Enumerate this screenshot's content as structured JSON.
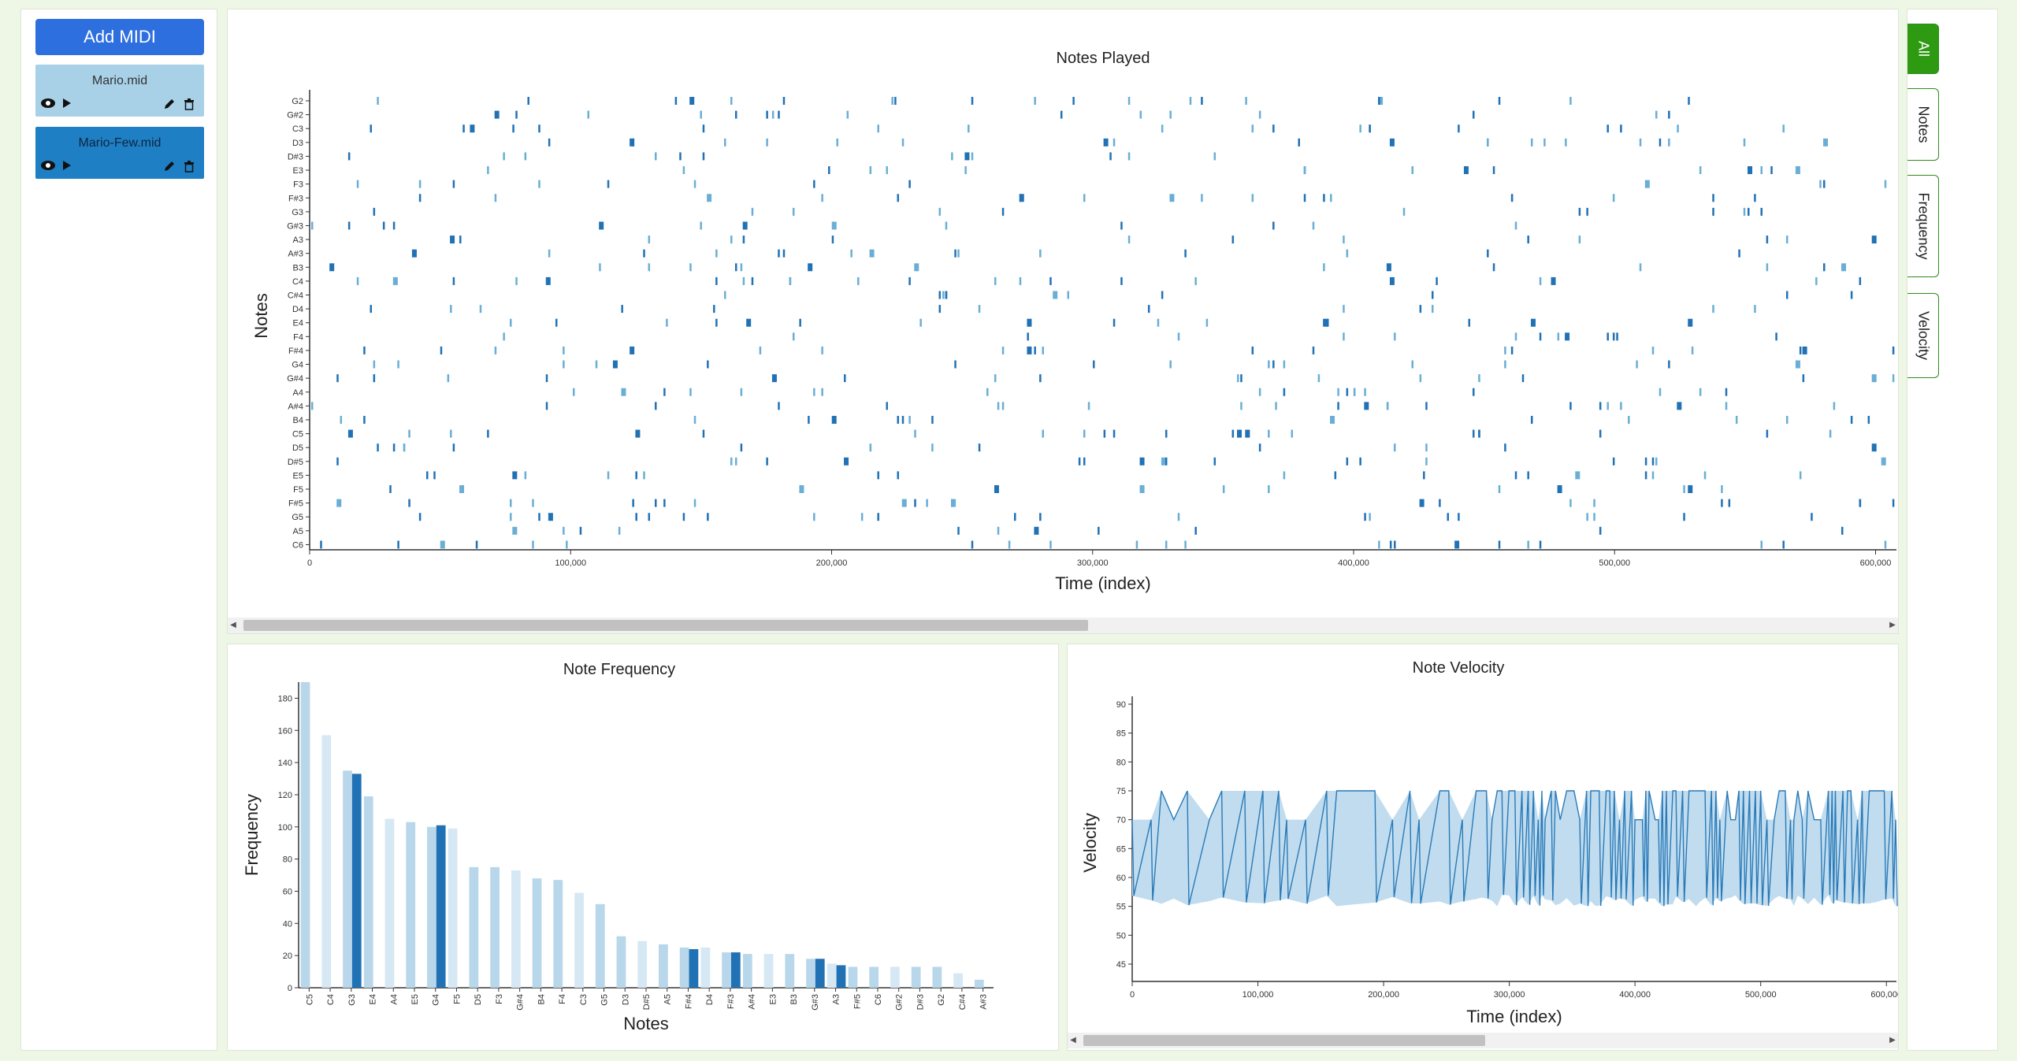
{
  "sidebar": {
    "add_label": "Add MIDI",
    "files": [
      {
        "name": "Mario.mid",
        "bg": "#a8d1e8",
        "active": false
      },
      {
        "name": "Mario-Few.mid",
        "bg": "#1f7fc4",
        "active": true
      }
    ]
  },
  "tabs": [
    {
      "label": "All",
      "active": true
    },
    {
      "label": "Notes",
      "active": false
    },
    {
      "label": "Frequency",
      "active": false
    },
    {
      "label": "Velocity",
      "active": false
    }
  ],
  "colors": {
    "accent": "#2e6fe0",
    "bar_dark": "#2171b5",
    "bar_light": "#b9d7ea",
    "tab_active": "#2e9a12"
  },
  "chart_data": [
    {
      "type": "scatter",
      "title": "Notes Played",
      "xlabel": "Time (index)",
      "ylabel": "Notes",
      "xlim": [
        0,
        608000
      ],
      "xticks": [
        "0",
        "100,000",
        "200,000",
        "300,000",
        "400,000",
        "500,000",
        "600,000"
      ],
      "categories": [
        "G2",
        "G#2",
        "C3",
        "D3",
        "D#3",
        "E3",
        "F3",
        "F#3",
        "G3",
        "G#3",
        "A3",
        "A#3",
        "B3",
        "C4",
        "C#4",
        "D4",
        "E4",
        "F4",
        "F#4",
        "G4",
        "G#4",
        "A4",
        "A#4",
        "B4",
        "C5",
        "D5",
        "D#5",
        "E5",
        "F5",
        "F#5",
        "G5",
        "A5",
        "C6"
      ],
      "notes": "note events spread over time index 0 to 608,000 across the pitch categories"
    },
    {
      "type": "bar",
      "title": "Note Frequency",
      "xlabel": "Notes",
      "ylabel": "Frequency",
      "ylim": [
        0,
        190
      ],
      "yticks": [
        0,
        20,
        40,
        60,
        80,
        100,
        120,
        140,
        160,
        180
      ],
      "categories": [
        "C5",
        "C4",
        "G3",
        "E4",
        "A4",
        "E5",
        "G4",
        "F5",
        "D5",
        "F3",
        "G#4",
        "B4",
        "F4",
        "C3",
        "G5",
        "D3",
        "D#5",
        "A5",
        "F#4",
        "D4",
        "F#3",
        "A#4",
        "E3",
        "B3",
        "G#3",
        "A3",
        "F#5",
        "C6",
        "G#2",
        "D#3",
        "G2",
        "C#4",
        "A#3"
      ],
      "series": [
        {
          "values": [
            190,
            157,
            135,
            119,
            105,
            103,
            100,
            99,
            75,
            75,
            73,
            68,
            67,
            59,
            52,
            32,
            29,
            27,
            25,
            25,
            22,
            21,
            21,
            21,
            18,
            15,
            13,
            13,
            13,
            13,
            13,
            9,
            5
          ]
        },
        {
          "values": [
            null,
            null,
            133,
            null,
            null,
            null,
            101,
            null,
            null,
            null,
            null,
            null,
            null,
            null,
            null,
            null,
            null,
            null,
            24,
            null,
            22,
            null,
            null,
            null,
            18,
            14,
            null,
            null,
            null,
            null,
            null,
            null,
            null
          ]
        }
      ]
    },
    {
      "type": "area",
      "title": "Note Velocity",
      "xlabel": "Time (index)",
      "ylabel": "Velocity",
      "xlim": [
        0,
        608000
      ],
      "ylim": [
        42,
        90
      ],
      "yticks": [
        45,
        50,
        55,
        60,
        65,
        70,
        75,
        80,
        85,
        90
      ],
      "xticks": [
        "0",
        "100,000",
        "200,000",
        "300,000",
        "400,000",
        "500,000",
        "600,000"
      ],
      "velocity_range": [
        55,
        75
      ]
    }
  ]
}
